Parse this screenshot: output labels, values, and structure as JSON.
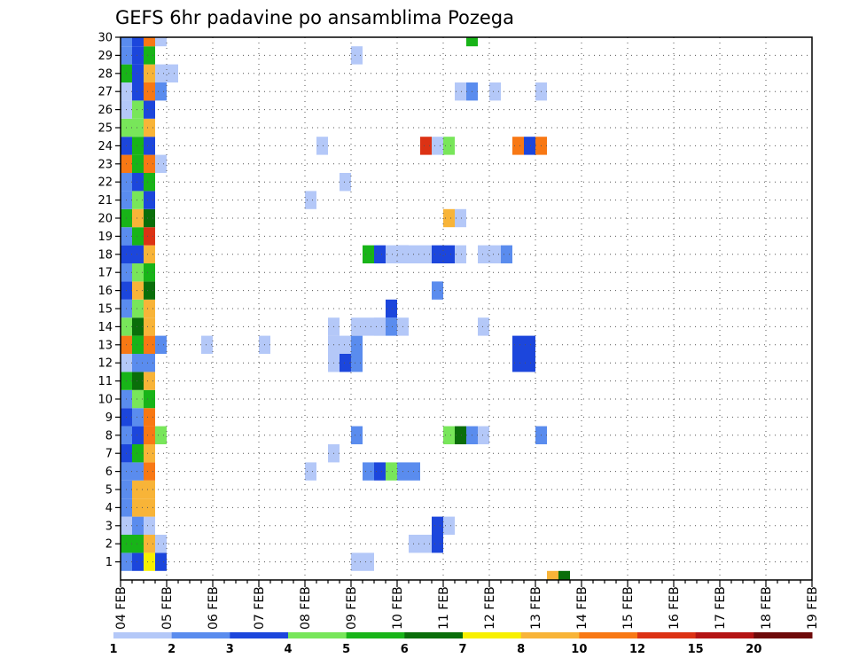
{
  "chart_data": {
    "type": "heatmap",
    "title": "GEFS 6hr padavine po ansamblima Pozega",
    "xlabel": "",
    "ylabel": "",
    "x_ticks": [
      "04 FEB",
      "05 FEB",
      "06 FEB",
      "07 FEB",
      "08 FEB",
      "09 FEB",
      "10 FEB",
      "11 FEB",
      "12 FEB",
      "13 FEB",
      "14 FEB",
      "15 FEB",
      "16 FEB",
      "17 FEB",
      "18 FEB",
      "19 FEB"
    ],
    "y_ticks": [
      "1",
      "2",
      "3",
      "4",
      "5",
      "6",
      "7",
      "8",
      "9",
      "10",
      "11",
      "12",
      "13",
      "14",
      "15",
      "16",
      "17",
      "18",
      "19",
      "20",
      "21",
      "22",
      "23",
      "24",
      "25",
      "26",
      "27",
      "28",
      "29",
      "30"
    ],
    "x_steps_per_day": 4,
    "ylim": [
      0,
      30
    ],
    "grid": true,
    "colorbar": {
      "labels": [
        "1",
        "2",
        "3",
        "4",
        "5",
        "6",
        "7",
        "8",
        "10",
        "12",
        "15",
        "20"
      ],
      "colors": [
        "#b4c8f8",
        "#5a8cee",
        "#1c46dc",
        "#78e65a",
        "#18b418",
        "#0a6e0a",
        "#f8f000",
        "#f8b438",
        "#f87814",
        "#dc3214",
        "#b41414",
        "#6e0a0a"
      ]
    },
    "cells": [
      [
        0,
        0,
        2
      ],
      [
        1,
        0,
        3
      ],
      [
        2,
        0,
        7
      ],
      [
        3,
        0,
        3
      ],
      [
        0,
        1,
        5
      ],
      [
        1,
        1,
        5
      ],
      [
        2,
        1,
        8
      ],
      [
        3,
        1,
        1
      ],
      [
        0,
        2,
        1
      ],
      [
        1,
        2,
        2
      ],
      [
        2,
        2,
        1
      ],
      [
        0,
        3,
        2
      ],
      [
        1,
        3,
        8
      ],
      [
        2,
        3,
        8
      ],
      [
        0,
        4,
        2
      ],
      [
        1,
        4,
        8
      ],
      [
        2,
        4,
        8
      ],
      [
        0,
        5,
        2
      ],
      [
        1,
        5,
        2
      ],
      [
        2,
        5,
        9
      ],
      [
        0,
        6,
        3
      ],
      [
        1,
        6,
        5
      ],
      [
        2,
        6,
        8
      ],
      [
        0,
        7,
        2
      ],
      [
        1,
        7,
        3
      ],
      [
        2,
        7,
        9
      ],
      [
        3,
        7,
        4
      ],
      [
        0,
        8,
        3
      ],
      [
        1,
        8,
        2
      ],
      [
        2,
        8,
        9
      ],
      [
        0,
        9,
        2
      ],
      [
        1,
        9,
        4
      ],
      [
        2,
        9,
        5
      ],
      [
        0,
        10,
        5
      ],
      [
        1,
        10,
        6
      ],
      [
        2,
        10,
        8
      ],
      [
        0,
        11,
        1
      ],
      [
        1,
        11,
        2
      ],
      [
        2,
        11,
        2
      ],
      [
        0,
        12,
        9
      ],
      [
        1,
        12,
        5
      ],
      [
        2,
        12,
        9
      ],
      [
        3,
        12,
        2
      ],
      [
        0,
        13,
        4
      ],
      [
        1,
        13,
        6
      ],
      [
        2,
        13,
        8
      ],
      [
        0,
        14,
        2
      ],
      [
        1,
        14,
        4
      ],
      [
        2,
        14,
        8
      ],
      [
        0,
        15,
        3
      ],
      [
        1,
        15,
        8
      ],
      [
        2,
        15,
        6
      ],
      [
        0,
        16,
        2
      ],
      [
        1,
        16,
        4
      ],
      [
        2,
        16,
        5
      ],
      [
        0,
        17,
        3
      ],
      [
        1,
        17,
        3
      ],
      [
        2,
        17,
        8
      ],
      [
        0,
        18,
        2
      ],
      [
        1,
        18,
        5
      ],
      [
        2,
        18,
        10
      ],
      [
        0,
        19,
        5
      ],
      [
        1,
        19,
        8
      ],
      [
        2,
        19,
        6
      ],
      [
        0,
        20,
        2
      ],
      [
        1,
        20,
        4
      ],
      [
        2,
        20,
        3
      ],
      [
        0,
        21,
        2
      ],
      [
        1,
        21,
        3
      ],
      [
        2,
        21,
        5
      ],
      [
        0,
        22,
        9
      ],
      [
        1,
        22,
        5
      ],
      [
        2,
        22,
        9
      ],
      [
        3,
        22,
        1
      ],
      [
        0,
        23,
        3
      ],
      [
        1,
        23,
        5
      ],
      [
        2,
        23,
        3
      ],
      [
        0,
        24,
        4
      ],
      [
        1,
        24,
        4
      ],
      [
        2,
        24,
        8
      ],
      [
        0,
        25,
        1
      ],
      [
        1,
        25,
        4
      ],
      [
        2,
        25,
        3
      ],
      [
        0,
        26,
        1
      ],
      [
        1,
        26,
        3
      ],
      [
        2,
        26,
        9
      ],
      [
        3,
        26,
        2
      ],
      [
        0,
        27,
        5
      ],
      [
        1,
        27,
        3
      ],
      [
        2,
        27,
        8
      ],
      [
        3,
        27,
        1
      ],
      [
        4,
        27,
        1
      ],
      [
        0,
        28,
        2
      ],
      [
        1,
        28,
        3
      ],
      [
        2,
        28,
        5
      ],
      [
        0,
        29,
        2
      ],
      [
        1,
        29,
        3
      ],
      [
        2,
        29,
        9
      ],
      [
        3,
        29,
        1
      ],
      [
        7,
        12,
        1
      ],
      [
        12,
        12,
        1
      ],
      [
        16,
        5,
        1
      ],
      [
        16,
        20,
        1
      ],
      [
        17,
        23,
        1
      ],
      [
        18,
        11,
        1
      ],
      [
        18,
        11,
        1
      ],
      [
        18,
        12,
        1
      ],
      [
        18,
        13,
        1
      ],
      [
        18,
        6,
        1
      ],
      [
        19,
        11,
        1
      ],
      [
        19,
        21,
        1
      ],
      [
        19,
        12,
        1
      ],
      [
        19,
        11,
        3
      ],
      [
        20,
        11,
        2
      ],
      [
        20,
        12,
        2
      ],
      [
        20,
        13,
        1
      ],
      [
        21,
        13,
        1
      ],
      [
        22,
        13,
        1
      ],
      [
        20,
        0,
        1
      ],
      [
        21,
        0,
        1
      ],
      [
        20,
        7,
        2
      ],
      [
        20,
        28,
        1
      ],
      [
        21,
        17,
        5
      ],
      [
        21,
        5,
        2
      ],
      [
        22,
        5,
        3
      ],
      [
        22,
        13,
        1
      ],
      [
        22,
        17,
        3
      ],
      [
        23,
        5,
        4
      ],
      [
        23,
        13,
        2
      ],
      [
        23,
        17,
        1
      ],
      [
        23,
        14,
        3
      ],
      [
        24,
        5,
        2
      ],
      [
        24,
        13,
        1
      ],
      [
        24,
        17,
        2
      ],
      [
        24,
        17,
        1
      ],
      [
        25,
        5,
        2
      ],
      [
        25,
        17,
        1
      ],
      [
        25,
        1,
        1
      ],
      [
        26,
        17,
        1
      ],
      [
        26,
        1,
        1
      ],
      [
        26,
        23,
        10
      ],
      [
        27,
        1,
        3
      ],
      [
        27,
        15,
        2
      ],
      [
        27,
        2,
        3
      ],
      [
        27,
        17,
        3
      ],
      [
        27,
        23,
        1
      ],
      [
        28,
        17,
        3
      ],
      [
        28,
        7,
        4
      ],
      [
        28,
        2,
        1
      ],
      [
        28,
        23,
        4
      ],
      [
        28,
        19,
        8
      ],
      [
        29,
        7,
        6
      ],
      [
        29,
        17,
        1
      ],
      [
        29,
        19,
        1
      ],
      [
        29,
        26,
        1
      ],
      [
        30,
        7,
        2
      ],
      [
        30,
        26,
        2
      ],
      [
        30,
        29,
        5
      ],
      [
        31,
        7,
        1
      ],
      [
        31,
        13,
        1
      ],
      [
        31,
        17,
        1
      ],
      [
        32,
        17,
        1
      ],
      [
        32,
        26,
        1
      ],
      [
        33,
        17,
        2
      ],
      [
        34,
        12,
        3
      ],
      [
        34,
        11,
        3
      ],
      [
        34,
        23,
        9
      ],
      [
        35,
        12,
        3
      ],
      [
        35,
        11,
        3
      ],
      [
        35,
        23,
        3
      ],
      [
        36,
        23,
        9
      ],
      [
        36,
        7,
        2
      ],
      [
        36,
        26,
        1
      ],
      [
        37,
        -1,
        8
      ],
      [
        38,
        -1,
        6
      ]
    ]
  }
}
